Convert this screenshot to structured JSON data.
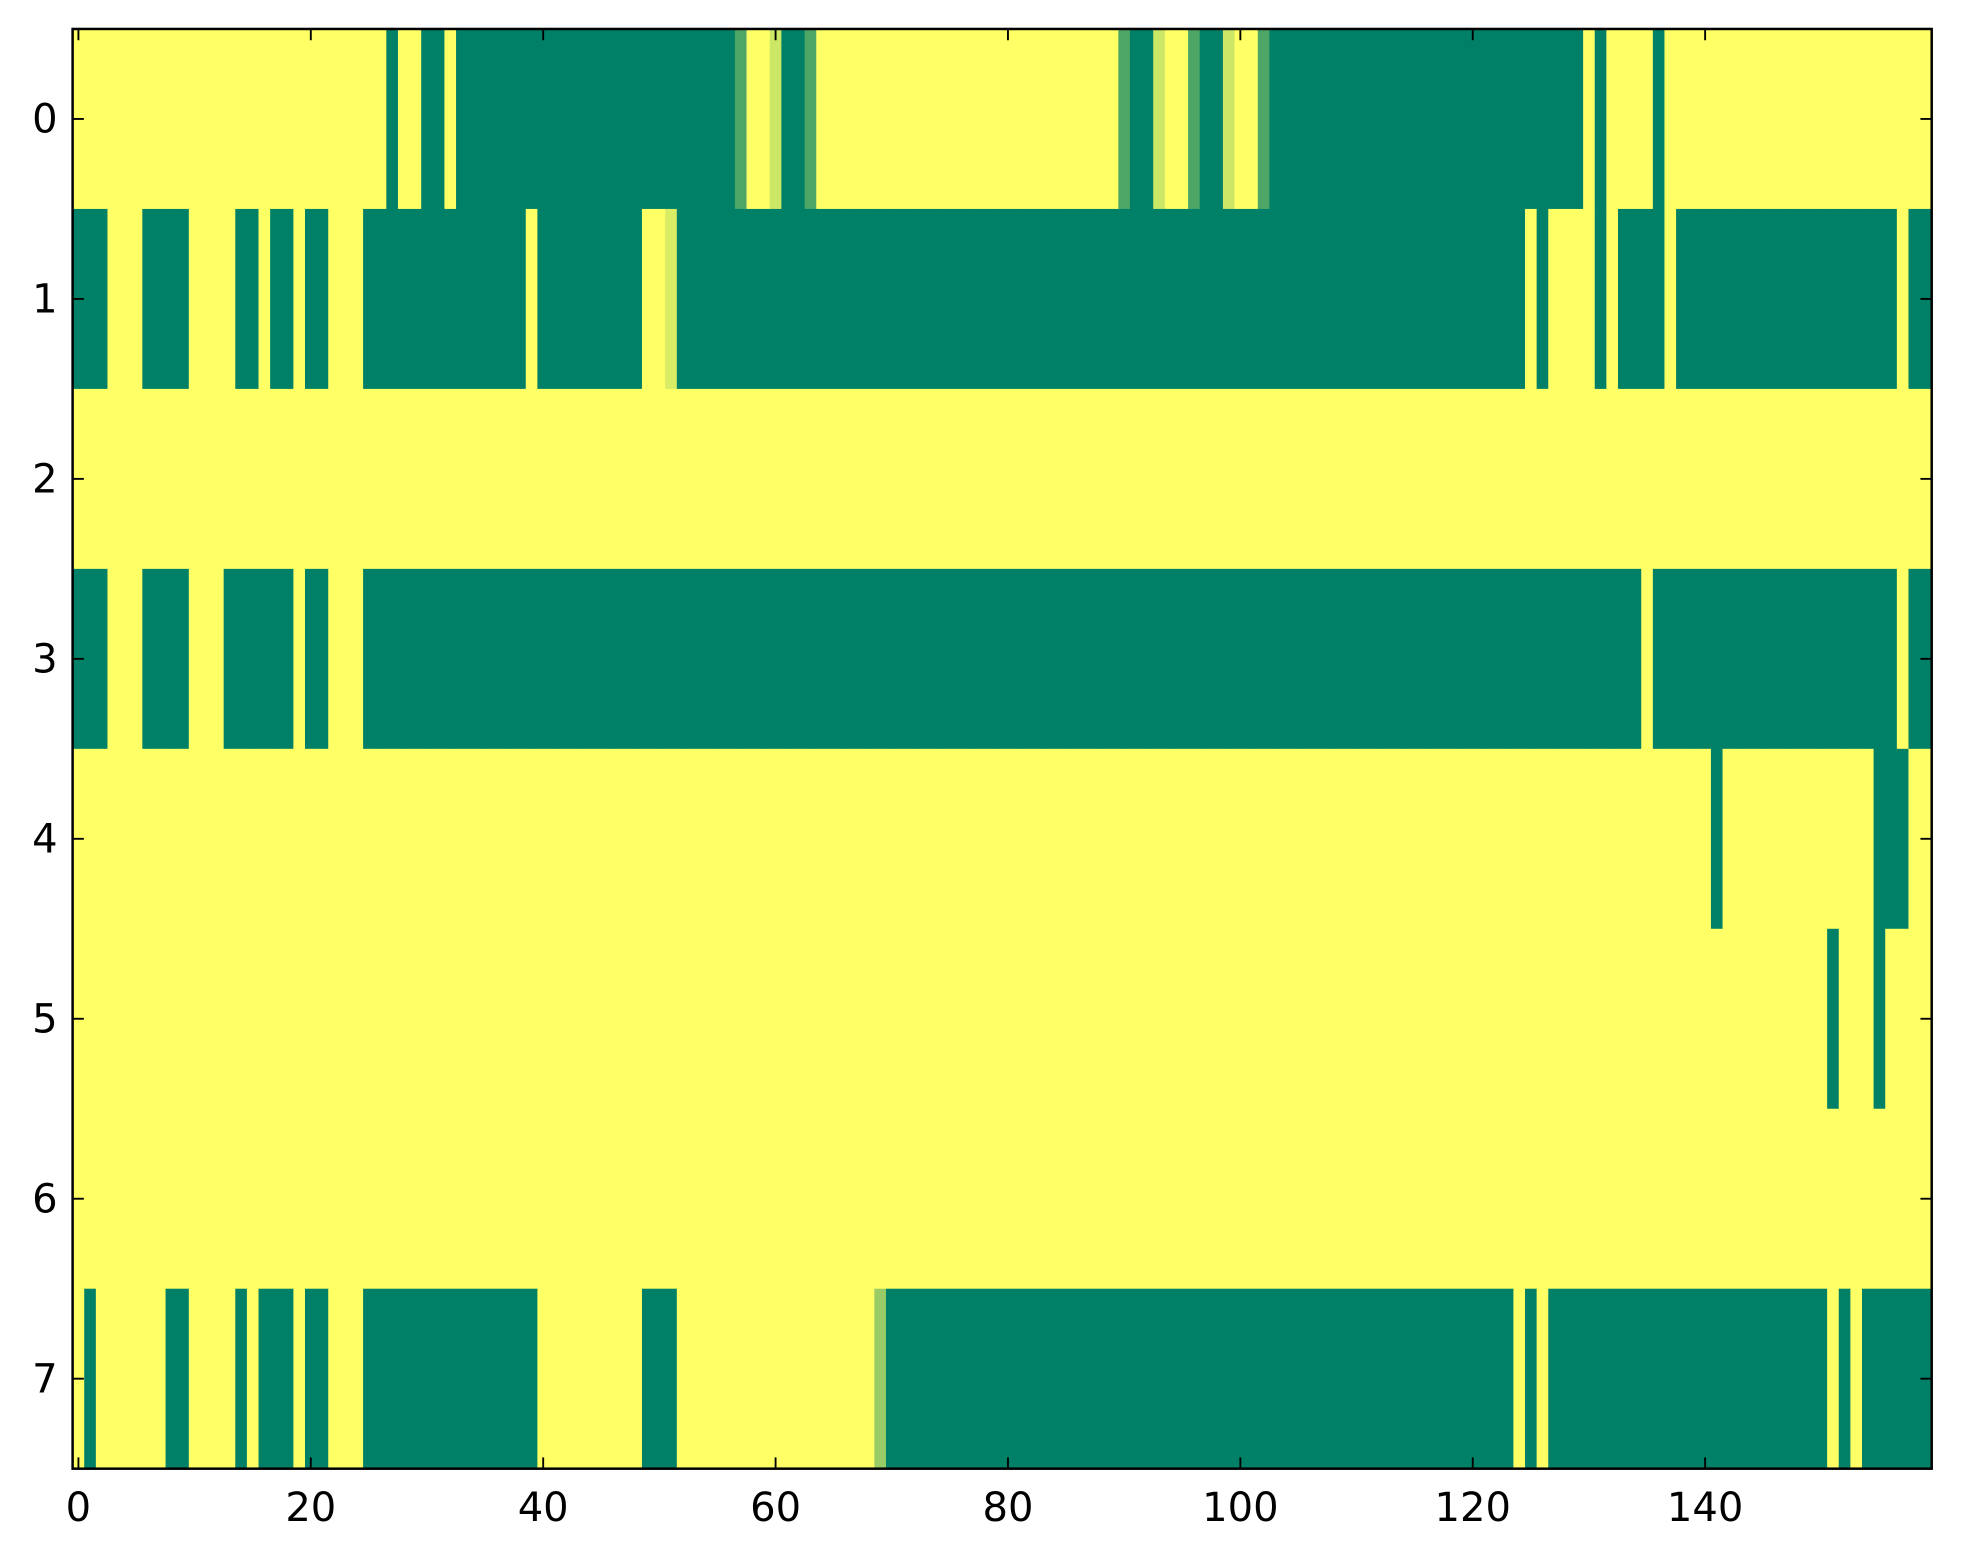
{
  "chart_data": {
    "type": "heatmap",
    "colors": [
      "#008066",
      "#ffff66"
    ],
    "xlim": [
      -0.5,
      159.5
    ],
    "ylim": [
      7.5,
      -0.5
    ],
    "xticks": [
      0,
      20,
      40,
      60,
      80,
      100,
      120,
      140
    ],
    "yticks": [
      0,
      1,
      2,
      3,
      4,
      5,
      6,
      7
    ],
    "values": [
      [
        1,
        1,
        1,
        1,
        1,
        1,
        1,
        1,
        1,
        1,
        1,
        1,
        1,
        1,
        1,
        1,
        1,
        1,
        1,
        1,
        1,
        1,
        1,
        1,
        1,
        1,
        1,
        0,
        1,
        1,
        0,
        0,
        1,
        0,
        0,
        0,
        0,
        0,
        0,
        0,
        0,
        0,
        0,
        0,
        0,
        0,
        0,
        0,
        0,
        0,
        0,
        0,
        0,
        0,
        0,
        0,
        0,
        0.3,
        1,
        1,
        0.8,
        0,
        0,
        0.3,
        1,
        1,
        1,
        1,
        1,
        1,
        1,
        1,
        1,
        1,
        1,
        1,
        1,
        1,
        1,
        1,
        1,
        1,
        1,
        1,
        1,
        1,
        1,
        1,
        1,
        1,
        0.3,
        0,
        0,
        0.8,
        1,
        1,
        0.3,
        0,
        0,
        0.8,
        1,
        1,
        0.3,
        0,
        0,
        0,
        0,
        0,
        0,
        0,
        0,
        0,
        0,
        0,
        0,
        0,
        0,
        0,
        0,
        0,
        0,
        0,
        0,
        0,
        0,
        0,
        0,
        0,
        0,
        0,
        1,
        0,
        1,
        1,
        1,
        1,
        0,
        1,
        1,
        1,
        1,
        1,
        1,
        1,
        1,
        1,
        1,
        1,
        1,
        1,
        1,
        1,
        1,
        1,
        1,
        1,
        1,
        1,
        1,
        1
      ],
      [
        0,
        0,
        0,
        1,
        1,
        1,
        0,
        0,
        0,
        0,
        1,
        1,
        1,
        1,
        0,
        0,
        1,
        0,
        0,
        1,
        0,
        0,
        1,
        1,
        1,
        0,
        0,
        0,
        0,
        0,
        0,
        0,
        0,
        0,
        0,
        0,
        0,
        0,
        0,
        1,
        0,
        0,
        0,
        0,
        0,
        0,
        0,
        0,
        0,
        1,
        1,
        0.85,
        0,
        0,
        0,
        0,
        0,
        0,
        0,
        0,
        0,
        0,
        0,
        0,
        0,
        0,
        0,
        0,
        0,
        0,
        0,
        0,
        0,
        0,
        0,
        0,
        0,
        0,
        0,
        0,
        0,
        0,
        0,
        0,
        0,
        0,
        0,
        0,
        0,
        0,
        0,
        0,
        0,
        0,
        0,
        0,
        0,
        0,
        0,
        0,
        0,
        0,
        0,
        0,
        0,
        0,
        0,
        0,
        0,
        0,
        0,
        0,
        0,
        0,
        0,
        0,
        0,
        0,
        0,
        0,
        0,
        0,
        0,
        0,
        0,
        1,
        0,
        1,
        1,
        1,
        1,
        0,
        1,
        0,
        0,
        0,
        0,
        1,
        0,
        0,
        0,
        0,
        0,
        0,
        0,
        0,
        0,
        0,
        0,
        0,
        0,
        0,
        0,
        0,
        0,
        0,
        0,
        1,
        0,
        0
      ],
      [
        1,
        1,
        1,
        1,
        1,
        1,
        1,
        1,
        1,
        1,
        1,
        1,
        1,
        1,
        1,
        1,
        1,
        1,
        1,
        1,
        1,
        1,
        1,
        1,
        1,
        1,
        1,
        1,
        1,
        1,
        1,
        1,
        1,
        1,
        1,
        1,
        1,
        1,
        1,
        1,
        1,
        1,
        1,
        1,
        1,
        1,
        1,
        1,
        1,
        1,
        1,
        1,
        1,
        1,
        1,
        1,
        1,
        1,
        1,
        1,
        1,
        1,
        1,
        1,
        1,
        1,
        1,
        1,
        1,
        1,
        1,
        1,
        1,
        1,
        1,
        1,
        1,
        1,
        1,
        1,
        1,
        1,
        1,
        1,
        1,
        1,
        1,
        1,
        1,
        1,
        1,
        1,
        1,
        1,
        1,
        1,
        1,
        1,
        1,
        1,
        1,
        1,
        1,
        1,
        1,
        1,
        1,
        1,
        1,
        1,
        1,
        1,
        1,
        1,
        1,
        1,
        1,
        1,
        1,
        1,
        1,
        1,
        1,
        1,
        1,
        1,
        1,
        1,
        1,
        1,
        1,
        1,
        1,
        1,
        1,
        1,
        1,
        1,
        1,
        1,
        1,
        1,
        1,
        1,
        1,
        1,
        1,
        1,
        1,
        1,
        1,
        1,
        1,
        1,
        1,
        1,
        1,
        1,
        1,
        1
      ],
      [
        0,
        0,
        0,
        1,
        1,
        1,
        0,
        0,
        0,
        0,
        1,
        1,
        1,
        0,
        0,
        0,
        0,
        0,
        0,
        1,
        0,
        0,
        1,
        1,
        1,
        0,
        0,
        0,
        0,
        0,
        0,
        0,
        0,
        0,
        0,
        0,
        0,
        0,
        0,
        0,
        0,
        0,
        0,
        0,
        0,
        0,
        0,
        0,
        0,
        0,
        0,
        0,
        0,
        0,
        0,
        0,
        0,
        0,
        0,
        0,
        0,
        0,
        0,
        0,
        0,
        0,
        0,
        0,
        0,
        0,
        0,
        0,
        0,
        0,
        0,
        0,
        0,
        0,
        0,
        0,
        0,
        0,
        0,
        0,
        0,
        0,
        0,
        0,
        0,
        0,
        0,
        0,
        0,
        0,
        0,
        0,
        0,
        0,
        0,
        0,
        0,
        0,
        0,
        0,
        0,
        0,
        0,
        0,
        0,
        0,
        0,
        0,
        0,
        0,
        0,
        0,
        0,
        0,
        0,
        0,
        0,
        0,
        0,
        0,
        0,
        0,
        0,
        0,
        0,
        0,
        0,
        0,
        0,
        0,
        0,
        1,
        0,
        0,
        0,
        0,
        0,
        0,
        0,
        0,
        0,
        0,
        0,
        0,
        0,
        0,
        0,
        0,
        0,
        0,
        0,
        0,
        0,
        1,
        0,
        0
      ],
      [
        1,
        1,
        1,
        1,
        1,
        1,
        1,
        1,
        1,
        1,
        1,
        1,
        1,
        1,
        1,
        1,
        1,
        1,
        1,
        1,
        1,
        1,
        1,
        1,
        1,
        1,
        1,
        1,
        1,
        1,
        1,
        1,
        1,
        1,
        1,
        1,
        1,
        1,
        1,
        1,
        1,
        1,
        1,
        1,
        1,
        1,
        1,
        1,
        1,
        1,
        1,
        1,
        1,
        1,
        1,
        1,
        1,
        1,
        1,
        1,
        1,
        1,
        1,
        1,
        1,
        1,
        1,
        1,
        1,
        1,
        1,
        1,
        1,
        1,
        1,
        1,
        1,
        1,
        1,
        1,
        1,
        1,
        1,
        1,
        1,
        1,
        1,
        1,
        1,
        1,
        1,
        1,
        1,
        1,
        1,
        1,
        1,
        1,
        1,
        1,
        1,
        1,
        1,
        1,
        1,
        1,
        1,
        1,
        1,
        1,
        1,
        1,
        1,
        1,
        1,
        1,
        1,
        1,
        1,
        1,
        1,
        1,
        1,
        1,
        1,
        1,
        1,
        1,
        1,
        1,
        1,
        1,
        1,
        1,
        1,
        1,
        1,
        1,
        1,
        1,
        1,
        0,
        1,
        1,
        1,
        1,
        1,
        1,
        1,
        1,
        1,
        1,
        1,
        1,
        1,
        0,
        0,
        0,
        1,
        1
      ],
      [
        1,
        1,
        1,
        1,
        1,
        1,
        1,
        1,
        1,
        1,
        1,
        1,
        1,
        1,
        1,
        1,
        1,
        1,
        1,
        1,
        1,
        1,
        1,
        1,
        1,
        1,
        1,
        1,
        1,
        1,
        1,
        1,
        1,
        1,
        1,
        1,
        1,
        1,
        1,
        1,
        1,
        1,
        1,
        1,
        1,
        1,
        1,
        1,
        1,
        1,
        1,
        1,
        1,
        1,
        1,
        1,
        1,
        1,
        1,
        1,
        1,
        1,
        1,
        1,
        1,
        1,
        1,
        1,
        1,
        1,
        1,
        1,
        1,
        1,
        1,
        1,
        1,
        1,
        1,
        1,
        1,
        1,
        1,
        1,
        1,
        1,
        1,
        1,
        1,
        1,
        1,
        1,
        1,
        1,
        1,
        1,
        1,
        1,
        1,
        1,
        1,
        1,
        1,
        1,
        1,
        1,
        1,
        1,
        1,
        1,
        1,
        1,
        1,
        1,
        1,
        1,
        1,
        1,
        1,
        1,
        1,
        1,
        1,
        1,
        1,
        1,
        1,
        1,
        1,
        1,
        1,
        1,
        1,
        1,
        1,
        1,
        1,
        1,
        1,
        1,
        1,
        1,
        1,
        1,
        1,
        1,
        1,
        1,
        1,
        1,
        1,
        0,
        1,
        1,
        1,
        0,
        1,
        1,
        1,
        1
      ],
      [
        1,
        1,
        1,
        1,
        1,
        1,
        1,
        1,
        1,
        1,
        1,
        1,
        1,
        1,
        1,
        1,
        1,
        1,
        1,
        1,
        1,
        1,
        1,
        1,
        1,
        1,
        1,
        1,
        1,
        1,
        1,
        1,
        1,
        1,
        1,
        1,
        1,
        1,
        1,
        1,
        1,
        1,
        1,
        1,
        1,
        1,
        1,
        1,
        1,
        1,
        1,
        1,
        1,
        1,
        1,
        1,
        1,
        1,
        1,
        1,
        1,
        1,
        1,
        1,
        1,
        1,
        1,
        1,
        1,
        1,
        1,
        1,
        1,
        1,
        1,
        1,
        1,
        1,
        1,
        1,
        1,
        1,
        1,
        1,
        1,
        1,
        1,
        1,
        1,
        1,
        1,
        1,
        1,
        1,
        1,
        1,
        1,
        1,
        1,
        1,
        1,
        1,
        1,
        1,
        1,
        1,
        1,
        1,
        1,
        1,
        1,
        1,
        1,
        1,
        1,
        1,
        1,
        1,
        1,
        1,
        1,
        1,
        1,
        1,
        1,
        1,
        1,
        1,
        1,
        1,
        1,
        1,
        1,
        1,
        1,
        1,
        1,
        1,
        1,
        1,
        1,
        1,
        1,
        1,
        1,
        1,
        1,
        1,
        1,
        1,
        1,
        1,
        1,
        1,
        1,
        1,
        1,
        1,
        1,
        1
      ],
      [
        1,
        0,
        1,
        1,
        1,
        1,
        1,
        1,
        0,
        0,
        1,
        1,
        1,
        1,
        0,
        1,
        0,
        0,
        0,
        1,
        0,
        0,
        1,
        1,
        1,
        0,
        0,
        0,
        0,
        0,
        0,
        0,
        0,
        0,
        0,
        0,
        0,
        0,
        0,
        0,
        1,
        1,
        1,
        1,
        1,
        1,
        1,
        1,
        1,
        0,
        0,
        0,
        1,
        1,
        1,
        1,
        1,
        1,
        1,
        1,
        1,
        1,
        1,
        1,
        1,
        1,
        1,
        1,
        1,
        0.6,
        0,
        0,
        0,
        0,
        0,
        0,
        0,
        0,
        0,
        0,
        0,
        0,
        0,
        0,
        0,
        0,
        0,
        0,
        0,
        0,
        0,
        0,
        0,
        0,
        0,
        0,
        0,
        0,
        0,
        0,
        0,
        0,
        0,
        0,
        0,
        0,
        0,
        0,
        0,
        0,
        0,
        0,
        0,
        0,
        0,
        0,
        0,
        0,
        0,
        0,
        0,
        0,
        0,
        0,
        1,
        0,
        1,
        0,
        0,
        0,
        0,
        0,
        0,
        0,
        0,
        0,
        0,
        0,
        0,
        0,
        0,
        0,
        0,
        0,
        0,
        0,
        0,
        0,
        0,
        0,
        0,
        1,
        0,
        1,
        0,
        0,
        0,
        0,
        0,
        0
      ]
    ]
  }
}
